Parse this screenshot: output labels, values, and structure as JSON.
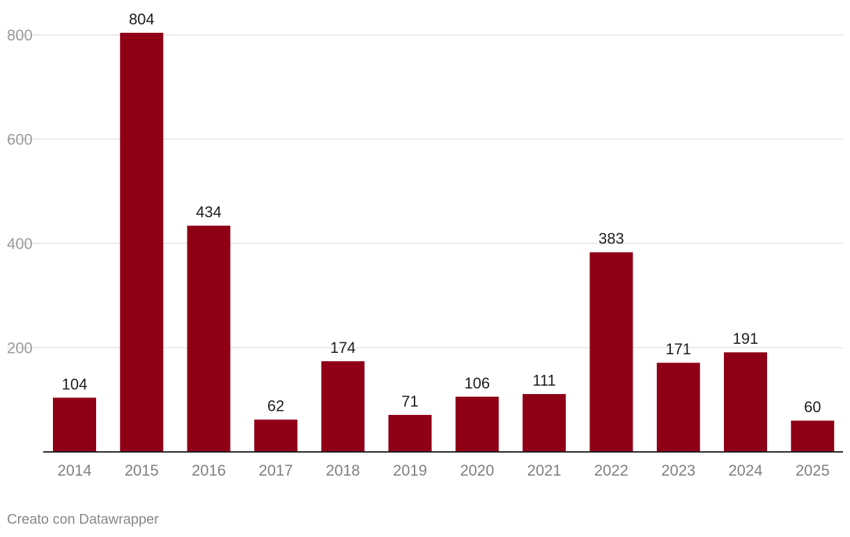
{
  "colors": {
    "bar": "#8f0017",
    "gridline": "#e3e3e3",
    "baseline": "#222222",
    "value_text": "#1d1d1d",
    "axis_text": "#9a9a9a",
    "footer_text": "#888888",
    "background": "#ffffff"
  },
  "footer": {
    "credit": "Creato con Datawrapper"
  },
  "chart_data": {
    "type": "bar",
    "categories": [
      "2014",
      "2015",
      "2016",
      "2017",
      "2018",
      "2019",
      "2020",
      "2021",
      "2022",
      "2023",
      "2024",
      "2025"
    ],
    "values": [
      104,
      804,
      434,
      62,
      174,
      71,
      106,
      111,
      383,
      171,
      191,
      60
    ],
    "value_labels": [
      "104",
      "804",
      "434",
      "62",
      "174",
      "71",
      "106",
      "111",
      "383",
      "171",
      "191",
      "60"
    ],
    "ylim": [
      0,
      800
    ],
    "yticks": [
      200,
      400,
      600,
      800
    ],
    "ytick_labels": [
      "200",
      "400",
      "600",
      "800"
    ],
    "grid": true,
    "legend": "none",
    "title": "",
    "xlabel": "",
    "ylabel": ""
  }
}
